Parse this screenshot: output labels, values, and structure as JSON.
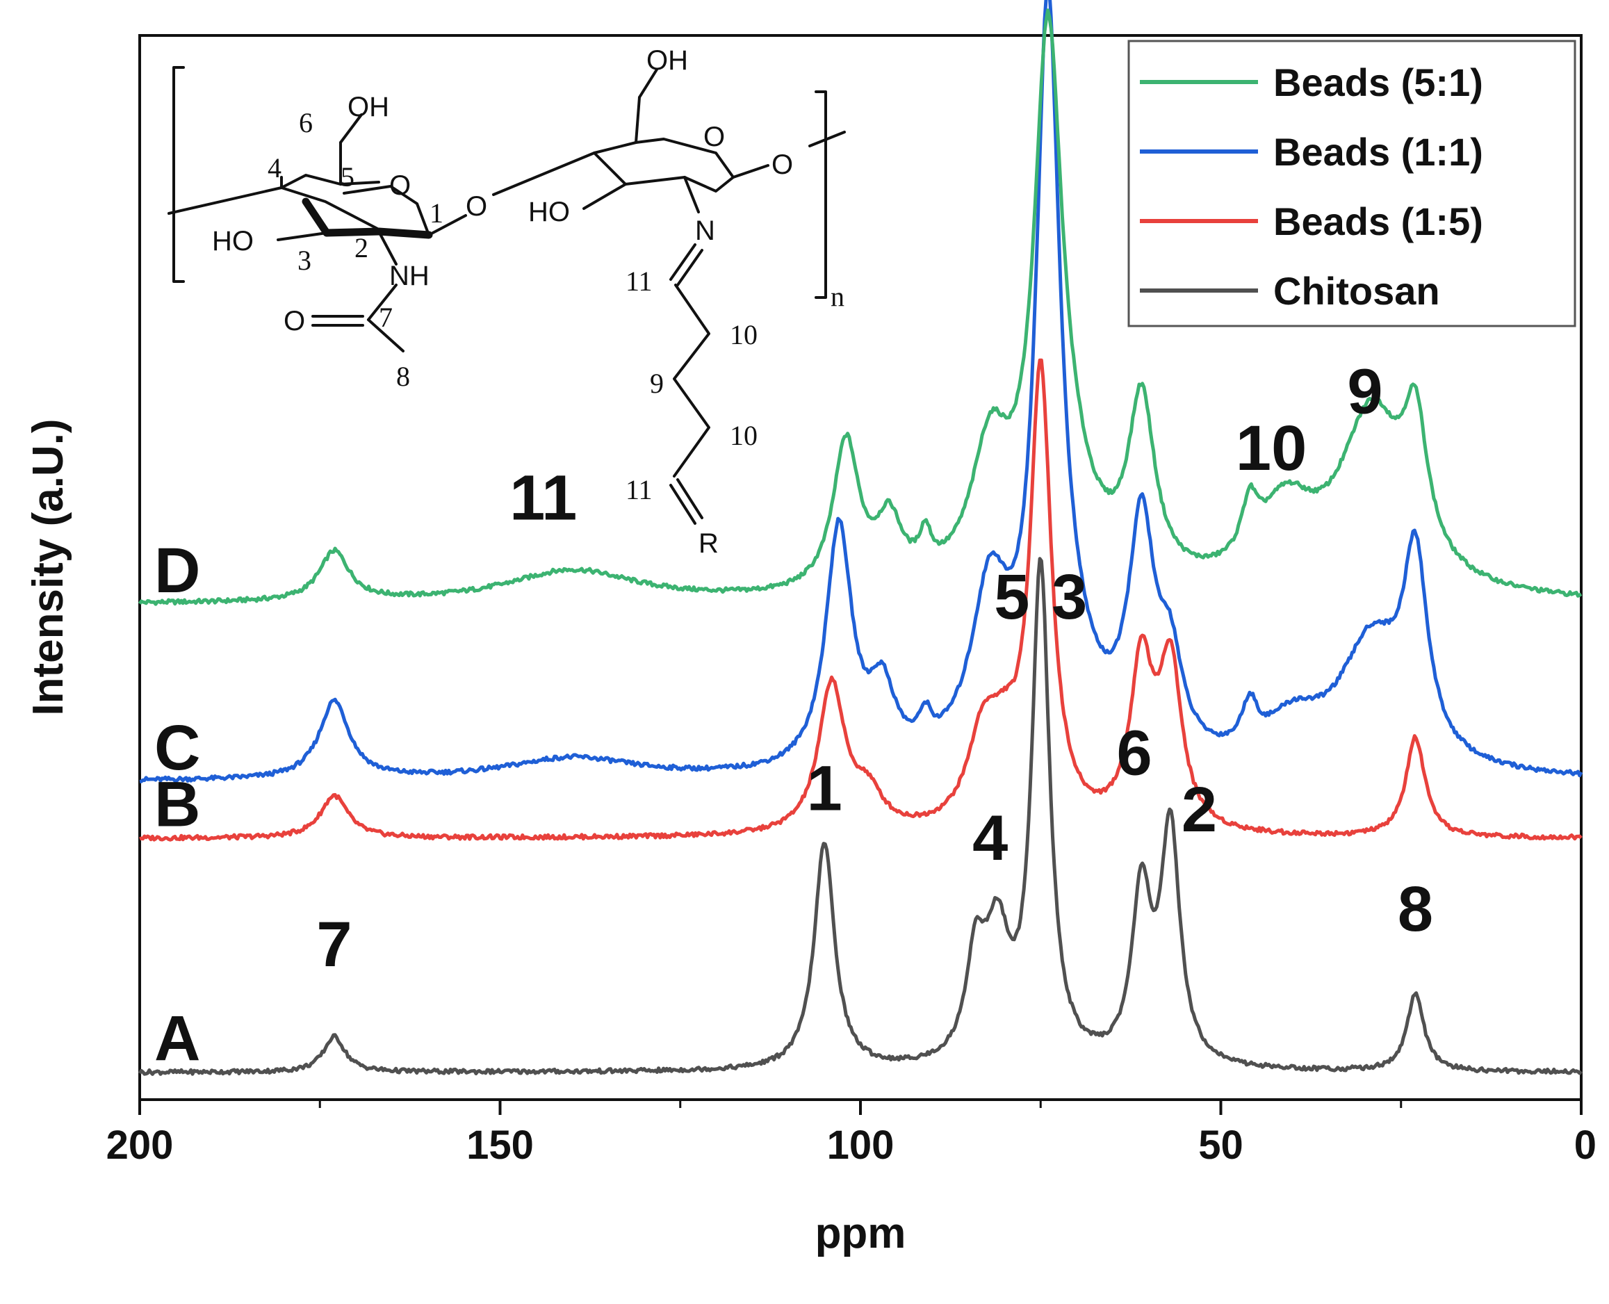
{
  "chart_data": {
    "type": "line",
    "xlabel": "ppm",
    "ylabel": "Intensity (a.U.)",
    "xlim": [
      200,
      0
    ],
    "x_reversed": true,
    "x_ticks": [
      "200",
      "150",
      "100",
      "50",
      "0"
    ],
    "grid": false,
    "legend_position": "top-right",
    "series": [
      {
        "name": "Beads (5:1)",
        "color": "#3cb371",
        "label": "D",
        "baseline": 0.66,
        "peaks": [
          {
            "ppm": 173,
            "height": 0.07,
            "width": 2.5
          },
          {
            "ppm": 140,
            "height": 0.045,
            "width": 11
          },
          {
            "ppm": 102,
            "height": 0.21,
            "width": 2.2
          },
          {
            "ppm": 96,
            "height": 0.09,
            "width": 2.2
          },
          {
            "ppm": 91,
            "height": 0.05,
            "width": 1.0
          },
          {
            "ppm": 82,
            "height": 0.18,
            "width": 3.2
          },
          {
            "ppm": 74,
            "height": 0.69,
            "width": 2.3
          },
          {
            "ppm": 72,
            "height": 0.12,
            "width": 5
          },
          {
            "ppm": 61,
            "height": 0.25,
            "width": 2.2
          },
          {
            "ppm": 46,
            "height": 0.07,
            "width": 1.3
          },
          {
            "ppm": 41,
            "height": 0.11,
            "width": 5
          },
          {
            "ppm": 29,
            "height": 0.25,
            "width": 5.5
          },
          {
            "ppm": 23,
            "height": 0.18,
            "width": 2
          }
        ]
      },
      {
        "name": "Beads (1:1)",
        "color": "#1f5fd6",
        "label": "C",
        "baseline": 0.41,
        "peaks": [
          {
            "ppm": 173,
            "height": 0.11,
            "width": 2.5
          },
          {
            "ppm": 140,
            "height": 0.03,
            "width": 11
          },
          {
            "ppm": 103,
            "height": 0.34,
            "width": 2.2
          },
          {
            "ppm": 97,
            "height": 0.1,
            "width": 2.2
          },
          {
            "ppm": 91,
            "height": 0.04,
            "width": 1.0
          },
          {
            "ppm": 82,
            "height": 0.23,
            "width": 3.2
          },
          {
            "ppm": 74,
            "height": 1.0,
            "width": 2.0
          },
          {
            "ppm": 71,
            "height": 0.1,
            "width": 5
          },
          {
            "ppm": 61,
            "height": 0.32,
            "width": 2.2
          },
          {
            "ppm": 57,
            "height": 0.12,
            "width": 2
          },
          {
            "ppm": 46,
            "height": 0.06,
            "width": 1.3
          },
          {
            "ppm": 40,
            "height": 0.06,
            "width": 5
          },
          {
            "ppm": 29,
            "height": 0.18,
            "width": 5.5
          },
          {
            "ppm": 23,
            "height": 0.26,
            "width": 2
          }
        ]
      },
      {
        "name": "Beads (1:5)",
        "color": "#e8413c",
        "label": "B",
        "baseline": 0.33,
        "peaks": [
          {
            "ppm": 173,
            "height": 0.06,
            "width": 2.3
          },
          {
            "ppm": 104,
            "height": 0.21,
            "width": 2.2
          },
          {
            "ppm": 99,
            "height": 0.05,
            "width": 2.5
          },
          {
            "ppm": 83,
            "height": 0.12,
            "width": 2.6
          },
          {
            "ppm": 80,
            "height": 0.08,
            "width": 2.5
          },
          {
            "ppm": 75,
            "height": 0.64,
            "width": 1.8
          },
          {
            "ppm": 61,
            "height": 0.23,
            "width": 1.9
          },
          {
            "ppm": 57,
            "height": 0.23,
            "width": 1.9
          },
          {
            "ppm": 23,
            "height": 0.14,
            "width": 1.6
          }
        ]
      },
      {
        "name": "Chitosan",
        "color": "#505050",
        "label": "A",
        "baseline": 0.0,
        "peaks": [
          {
            "ppm": 173,
            "height": 0.05,
            "width": 1.8
          },
          {
            "ppm": 105,
            "height": 0.32,
            "width": 1.7
          },
          {
            "ppm": 84,
            "height": 0.14,
            "width": 1.6
          },
          {
            "ppm": 81,
            "height": 0.17,
            "width": 2.0
          },
          {
            "ppm": 75,
            "height": 0.7,
            "width": 1.5
          },
          {
            "ppm": 61,
            "height": 0.24,
            "width": 1.6
          },
          {
            "ppm": 57,
            "height": 0.33,
            "width": 1.6
          },
          {
            "ppm": 23,
            "height": 0.11,
            "width": 1.4
          }
        ]
      }
    ],
    "annotations": [
      {
        "text": "7",
        "ppm": 173,
        "level": 0.15
      },
      {
        "text": "1",
        "ppm": 105,
        "level": 0.37
      },
      {
        "text": "4",
        "ppm": 82,
        "level": 0.3
      },
      {
        "text": "5",
        "ppm": 79,
        "level": 0.64
      },
      {
        "text": "3",
        "ppm": 71,
        "level": 0.64
      },
      {
        "text": "6",
        "ppm": 62,
        "level": 0.42
      },
      {
        "text": "2",
        "ppm": 53,
        "level": 0.34
      },
      {
        "text": "8",
        "ppm": 23,
        "level": 0.2
      },
      {
        "text": "11",
        "ppm": 144,
        "level": 0.78
      },
      {
        "text": "10",
        "ppm": 43,
        "level": 0.85
      },
      {
        "text": "9",
        "ppm": 30,
        "level": 0.93
      }
    ]
  },
  "structure": {
    "atoms": {
      "oh_top_left": "OH",
      "oh_top_right": "OH",
      "ho_left": "HO",
      "ho_mid": "HO",
      "o_ring_left": "O",
      "o_ring_right": "O",
      "o_link": "O",
      "o_end": "O",
      "nh": "NH",
      "n": "N",
      "o_carbonyl": "O",
      "r": "R",
      "n_sub": "n"
    },
    "numbers": {
      "c1": "1",
      "c2": "2",
      "c3": "3",
      "c4": "4",
      "c5": "5",
      "c6": "6",
      "c7": "7",
      "c8": "8",
      "c9": "9",
      "c10a": "10",
      "c10b": "10",
      "c11a": "11",
      "c11b": "11"
    }
  }
}
